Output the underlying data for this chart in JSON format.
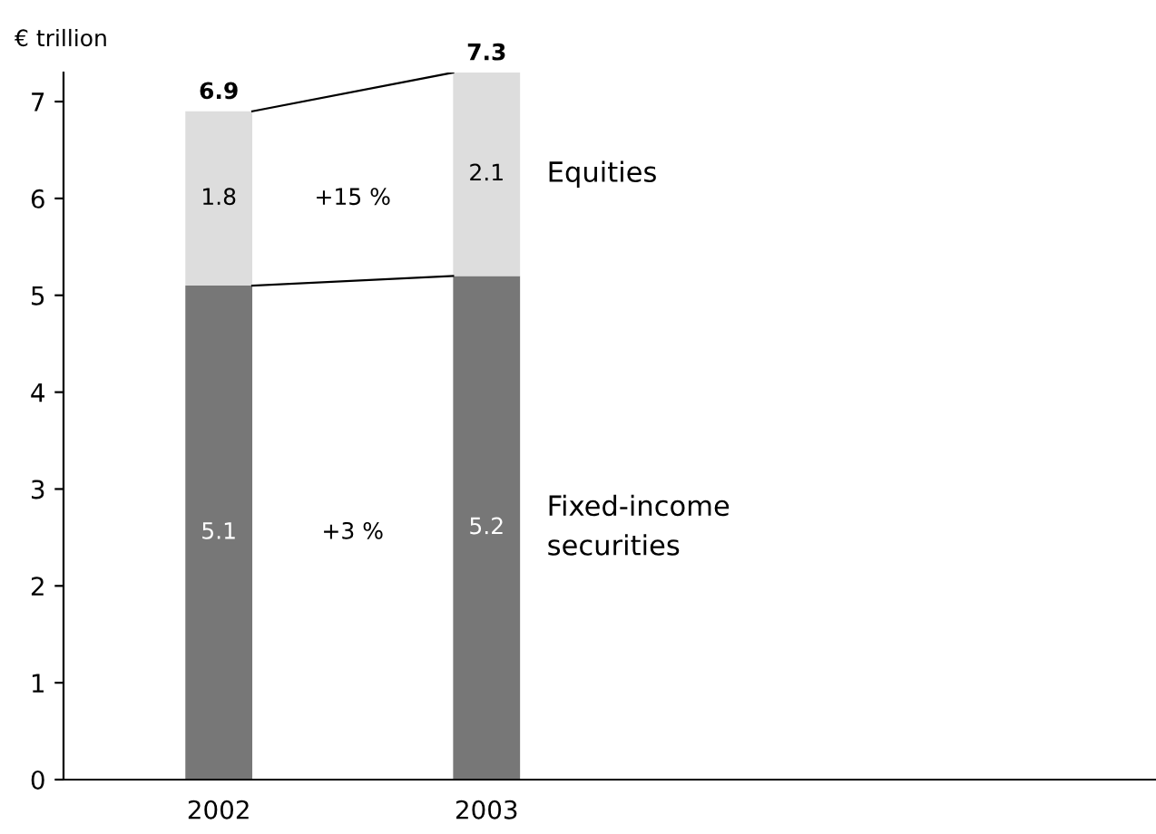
{
  "chart_data": {
    "type": "bar",
    "stacked": true,
    "ylabel": "€ trillion",
    "categories": [
      "2002",
      "2003"
    ],
    "series": [
      {
        "name": "Fixed-income\nsecurities",
        "color": "#777777",
        "values": [
          5.1,
          5.2
        ]
      },
      {
        "name": "Equities",
        "color": "#dddddd",
        "values": [
          1.8,
          2.1
        ]
      }
    ],
    "data_labels": true,
    "totals": [
      "6.9",
      "7.3"
    ],
    "annotations": [
      "+3 %",
      "+15 %"
    ],
    "ylim": [
      0,
      7.3
    ],
    "yticks": [
      0,
      1,
      2,
      3,
      4,
      5,
      6,
      7
    ],
    "grid": false,
    "legend": false
  }
}
